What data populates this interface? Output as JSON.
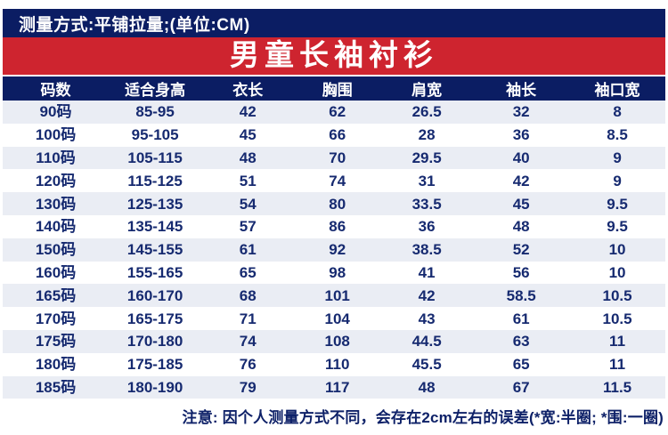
{
  "measure_bar": {
    "text": "测量方式:平铺拉量;(单位:CM)"
  },
  "banner": {
    "title": "男童长袖衬衫"
  },
  "table": {
    "columns": [
      "码数",
      "适合身高",
      "衣长",
      "胸围",
      "肩宽",
      "袖长",
      "袖口宽"
    ],
    "rows": [
      [
        "90码",
        "85-95",
        "42",
        "62",
        "26.5",
        "32",
        "8"
      ],
      [
        "100码",
        "95-105",
        "45",
        "66",
        "28",
        "36",
        "8.5"
      ],
      [
        "110码",
        "105-115",
        "48",
        "70",
        "29.5",
        "40",
        "9"
      ],
      [
        "120码",
        "115-125",
        "51",
        "74",
        "31",
        "42",
        "9"
      ],
      [
        "130码",
        "125-135",
        "54",
        "80",
        "33.5",
        "45",
        "9.5"
      ],
      [
        "140码",
        "135-145",
        "57",
        "86",
        "36",
        "48",
        "9.5"
      ],
      [
        "150码",
        "145-155",
        "61",
        "92",
        "38.5",
        "52",
        "10"
      ],
      [
        "160码",
        "155-165",
        "65",
        "98",
        "41",
        "56",
        "10"
      ],
      [
        "165码",
        "160-170",
        "68",
        "101",
        "42",
        "58.5",
        "10.5"
      ],
      [
        "170码",
        "165-175",
        "71",
        "104",
        "43",
        "61",
        "10.5"
      ],
      [
        "175码",
        "170-180",
        "74",
        "108",
        "44.5",
        "63",
        "11"
      ],
      [
        "180码",
        "175-185",
        "76",
        "110",
        "45.5",
        "65",
        "11"
      ],
      [
        "185码",
        "180-190",
        "79",
        "117",
        "48",
        "67",
        "11.5"
      ]
    ]
  },
  "note": {
    "text": "注意: 因个人测量方式不同，会存在2cm左右的误差(*宽:半圈; *围:一圈)"
  },
  "colors": {
    "navy": "#0b1d63",
    "red": "#ce242f",
    "row_alt": "#eaedf4",
    "cell_text": "#162a70",
    "header_text": "#ffffff"
  }
}
